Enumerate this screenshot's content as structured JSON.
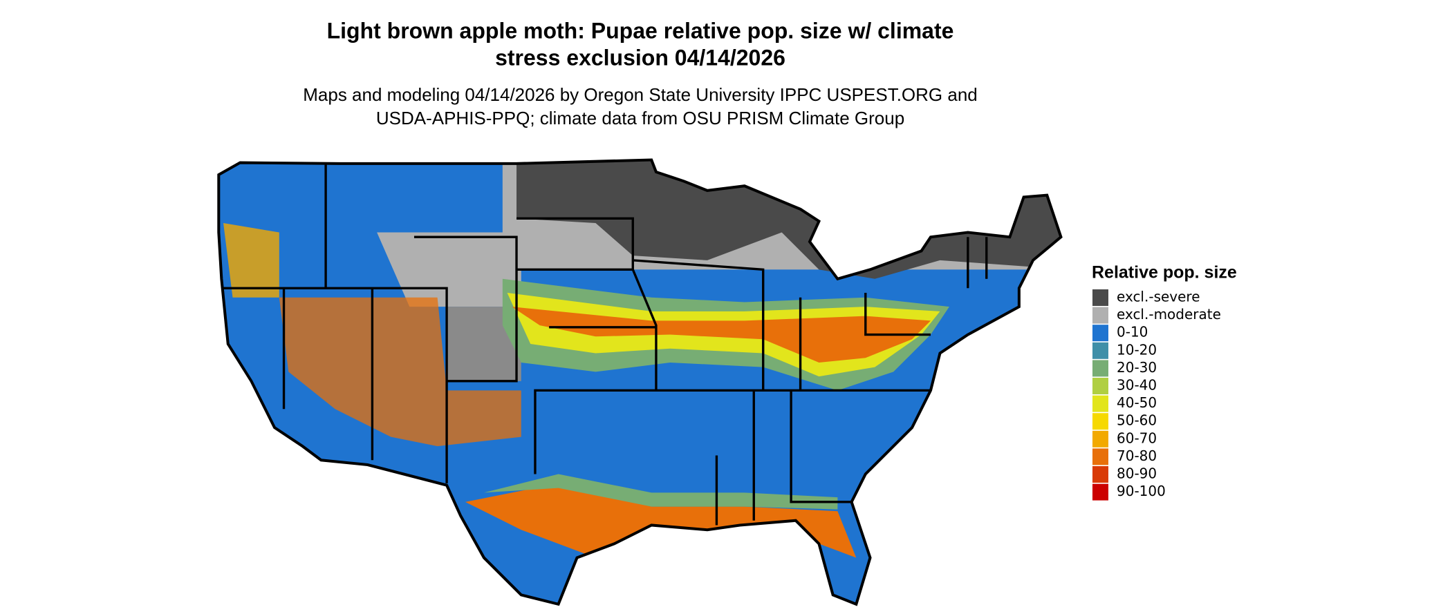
{
  "title": [
    "Light brown apple moth: Pupae relative pop. size w/ climate",
    "stress exclusion 04/14/2026"
  ],
  "subtitle": [
    "Maps and modeling 04/14/2026 by Oregon State University IPPC USPEST.ORG and",
    "USDA-APHIS-PPQ; climate data from OSU PRISM Climate Group"
  ],
  "legend": {
    "title": "Relative pop. size",
    "items": [
      {
        "label": "excl.-severe",
        "color": "#4a4a4a"
      },
      {
        "label": "excl.-moderate",
        "color": "#b0b0b0"
      },
      {
        "label": "0-10",
        "color": "#1f74d0"
      },
      {
        "label": "10-20",
        "color": "#3f8fa8"
      },
      {
        "label": "20-30",
        "color": "#77ad74"
      },
      {
        "label": "30-40",
        "color": "#b0cf42"
      },
      {
        "label": "40-50",
        "color": "#e2e51c"
      },
      {
        "label": "50-60",
        "color": "#f6d900"
      },
      {
        "label": "60-70",
        "color": "#f2a900"
      },
      {
        "label": "70-80",
        "color": "#e8700a"
      },
      {
        "label": "80-90",
        "color": "#d93a06"
      },
      {
        "label": "90-100",
        "color": "#cc0000"
      }
    ]
  }
}
